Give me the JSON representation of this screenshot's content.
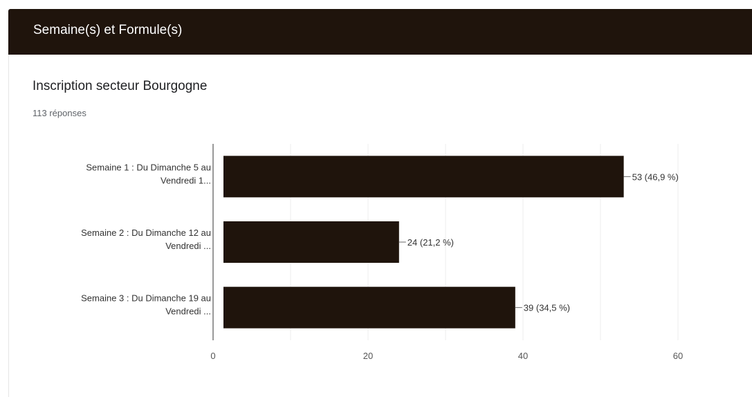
{
  "section": {
    "title": "Semaine(s) et Formule(s)"
  },
  "question": {
    "title": "Inscription secteur Bourgogne",
    "responses": "113 réponses"
  },
  "colors": {
    "header_bg": "#1f140c",
    "bar": "#1f140c"
  },
  "chart_data": {
    "type": "bar",
    "orientation": "horizontal",
    "title": "",
    "xlabel": "",
    "ylabel": "",
    "categories": [
      [
        "Semaine 1 : Du Dimanche 5 au",
        "Vendredi 1..."
      ],
      [
        "Semaine 2 : Du Dimanche 12 au",
        "Vendredi ..."
      ],
      [
        "Semaine 3 : Du Dimanche 19 au",
        "Vendredi ..."
      ]
    ],
    "values": [
      53,
      24,
      39
    ],
    "data_labels": [
      "53 (46,9 %)",
      "24 (21,2 %)",
      "39 (34,5 %)"
    ],
    "xlim": [
      0,
      60
    ],
    "xticks": [
      0,
      20,
      40,
      60
    ],
    "grid": true
  }
}
